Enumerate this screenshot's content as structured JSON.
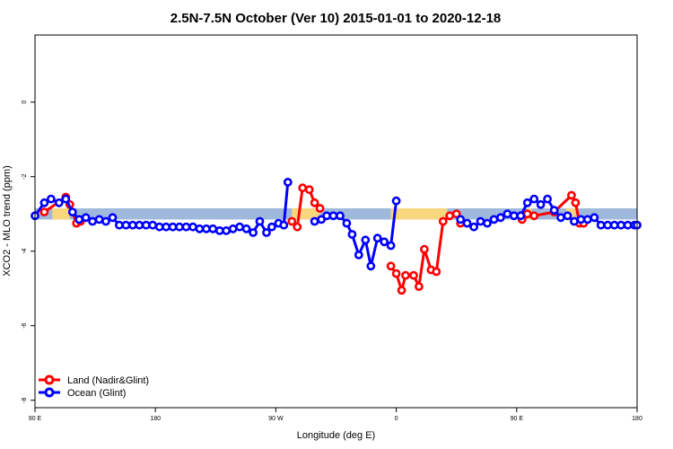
{
  "chart_data": {
    "type": "line",
    "title": "2.5N-7.5N October (Ver 10)   2015-01-01 to 2020-12-18",
    "xlabel": "Longitude (deg E)",
    "ylabel": "XCO2 - MLO trend (ppm)",
    "x_ticks": [
      {
        "value": 90,
        "label": "90 E"
      },
      {
        "value": 180,
        "label": "180"
      },
      {
        "value": 270,
        "label": "90 W"
      },
      {
        "value": 360,
        "label": "0"
      },
      {
        "value": 450,
        "label": "90 E"
      },
      {
        "value": 540,
        "label": "180"
      }
    ],
    "y_ticks": [
      {
        "value": 0,
        "label": "0"
      },
      {
        "value": -2,
        "label": "-2"
      },
      {
        "value": -4,
        "label": "-4"
      },
      {
        "value": -6,
        "label": "-6"
      },
      {
        "value": -8,
        "label": "-8"
      }
    ],
    "xlim": [
      90,
      540
    ],
    "ylim": [
      -8.2,
      1.8
    ],
    "grid": false,
    "legend_position": "bottom-left",
    "background_band": {
      "y_range": [
        -3.15,
        -2.85
      ],
      "land_color": "#f9d77e",
      "ocean_color": "#9fb9dc",
      "land_segments": [
        [
          103,
          116
        ],
        [
          282,
          303
        ],
        [
          356,
          398
        ],
        [
          458,
          461
        ],
        [
          487,
          494
        ]
      ]
    },
    "series": [
      {
        "name": "Land (Nadir&Glint)",
        "color": "#ff0000",
        "segments": [
          [
            [
              97,
              -2.95
            ],
            [
              113,
              -2.55
            ],
            [
              116,
              -2.75
            ],
            [
              121,
              -3.25
            ],
            [
              124,
              -3.2
            ]
          ],
          [
            [
              282,
              -3.2
            ],
            [
              286,
              -3.35
            ],
            [
              290,
              -2.3
            ],
            [
              295,
              -2.35
            ],
            [
              299,
              -2.7
            ],
            [
              303,
              -2.85
            ]
          ],
          [
            [
              356,
              -4.4
            ],
            [
              360,
              -4.6
            ],
            [
              364,
              -5.05
            ],
            [
              367,
              -4.65
            ],
            [
              373,
              -4.65
            ],
            [
              377,
              -4.95
            ],
            [
              381,
              -3.95
            ],
            [
              386,
              -4.5
            ],
            [
              390,
              -4.55
            ],
            [
              395,
              -3.2
            ],
            [
              400,
              -3.05
            ],
            [
              405,
              -3.0
            ],
            [
              408,
              -3.25
            ]
          ],
          [
            [
              454,
              -3.15
            ],
            [
              458,
              -3.0
            ],
            [
              463,
              -3.05
            ],
            [
              478,
              -2.95
            ],
            [
              491,
              -2.5
            ],
            [
              494,
              -2.7
            ],
            [
              497,
              -3.25
            ],
            [
              500,
              -3.25
            ]
          ]
        ]
      },
      {
        "name": "Ocean (Glint)",
        "color": "#0000ff",
        "segments": [
          [
            [
              90,
              -3.05
            ],
            [
              97,
              -2.7
            ],
            [
              102,
              -2.6
            ],
            [
              108,
              -2.7
            ],
            [
              113,
              -2.6
            ],
            [
              118,
              -2.95
            ],
            [
              123,
              -3.15
            ],
            [
              128,
              -3.1
            ],
            [
              133,
              -3.2
            ],
            [
              138,
              -3.15
            ],
            [
              143,
              -3.2
            ],
            [
              148,
              -3.1
            ],
            [
              153,
              -3.3
            ],
            [
              158,
              -3.3
            ],
            [
              163,
              -3.3
            ],
            [
              168,
              -3.3
            ],
            [
              173,
              -3.3
            ],
            [
              178,
              -3.3
            ],
            [
              183,
              -3.35
            ],
            [
              188,
              -3.35
            ],
            [
              193,
              -3.35
            ],
            [
              198,
              -3.35
            ],
            [
              203,
              -3.35
            ],
            [
              208,
              -3.35
            ],
            [
              213,
              -3.4
            ],
            [
              218,
              -3.4
            ],
            [
              223,
              -3.4
            ],
            [
              228,
              -3.45
            ],
            [
              233,
              -3.45
            ],
            [
              238,
              -3.4
            ],
            [
              243,
              -3.35
            ],
            [
              248,
              -3.4
            ],
            [
              253,
              -3.5
            ],
            [
              258,
              -3.2
            ],
            [
              263,
              -3.5
            ],
            [
              267,
              -3.35
            ],
            [
              272,
              -3.25
            ],
            [
              276,
              -3.3
            ],
            [
              279,
              -2.15
            ]
          ],
          [
            [
              299,
              -3.2
            ],
            [
              304,
              -3.15
            ],
            [
              308,
              -3.05
            ],
            [
              313,
              -3.05
            ],
            [
              318,
              -3.05
            ],
            [
              323,
              -3.25
            ],
            [
              327,
              -3.55
            ],
            [
              332,
              -4.1
            ],
            [
              337,
              -3.7
            ],
            [
              341,
              -4.4
            ],
            [
              346,
              -3.65
            ],
            [
              351,
              -3.75
            ],
            [
              356,
              -3.85
            ],
            [
              360,
              -2.65
            ]
          ],
          [
            [
              408,
              -3.15
            ],
            [
              413,
              -3.25
            ],
            [
              418,
              -3.35
            ],
            [
              423,
              -3.2
            ],
            [
              428,
              -3.25
            ],
            [
              433,
              -3.15
            ],
            [
              438,
              -3.1
            ],
            [
              443,
              -3.0
            ],
            [
              448,
              -3.05
            ],
            [
              453,
              -3.05
            ],
            [
              458,
              -2.7
            ],
            [
              463,
              -2.6
            ],
            [
              468,
              -2.75
            ],
            [
              473,
              -2.6
            ],
            [
              478,
              -2.9
            ],
            [
              483,
              -3.1
            ],
            [
              488,
              -3.05
            ],
            [
              493,
              -3.2
            ],
            [
              498,
              -3.15
            ],
            [
              503,
              -3.15
            ],
            [
              508,
              -3.1
            ],
            [
              513,
              -3.3
            ],
            [
              518,
              -3.3
            ],
            [
              523,
              -3.3
            ],
            [
              528,
              -3.3
            ],
            [
              533,
              -3.3
            ],
            [
              538,
              -3.3
            ],
            [
              540,
              -3.3
            ]
          ]
        ]
      }
    ]
  }
}
